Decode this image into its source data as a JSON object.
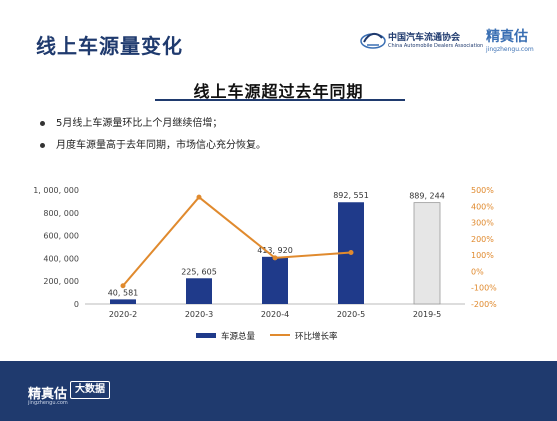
{
  "header": {
    "title": "线上车源量变化",
    "association_name": "中国汽车流通协会",
    "association_name_en": "China Automobile Dealers Association",
    "brand_name": "精真估",
    "brand_url": "jingzhengu.com"
  },
  "slide": {
    "subtitle": "线上车源超过去年同期",
    "bullets": [
      "5月线上车源量环比上个月继续倍增；",
      "月度车源量高于去年同期，市场信心充分恢复。"
    ]
  },
  "footer": {
    "brand_name": "精真估",
    "brand_url": "jingzhengu.com",
    "badge": "大数据"
  },
  "colors": {
    "bar": "#1f3a8a",
    "bar_prev_year": "#e6e6e6",
    "line": "#e08a2e",
    "navy": "#1f3a6e"
  },
  "chart_data": {
    "type": "bar",
    "categories": [
      "2020-2",
      "2020-3",
      "2020-4",
      "2020-5",
      "2019-5"
    ],
    "series": [
      {
        "name": "车源总量",
        "type": "bar",
        "axis": "left",
        "values": [
          40581,
          225605,
          413920,
          892551,
          889244
        ]
      },
      {
        "name": "环比增长率",
        "type": "line",
        "axis": "right",
        "values": [
          -88,
          456,
          83,
          116,
          null
        ]
      }
    ],
    "bar_labels": [
      "40, 581",
      "225, 605",
      "413, 920",
      "892, 551",
      "889, 244"
    ],
    "ylim_left": [
      0,
      1000000
    ],
    "yticks_left": [
      "0",
      "200, 000",
      "400, 000",
      "600, 000",
      "800, 000",
      "1, 000, 000"
    ],
    "ylim_right": [
      -200,
      500
    ],
    "yticks_right": [
      "-200%",
      "-100%",
      "0%",
      "100%",
      "200%",
      "300%",
      "400%",
      "500%"
    ],
    "legend_position": "bottom",
    "grid": false
  }
}
